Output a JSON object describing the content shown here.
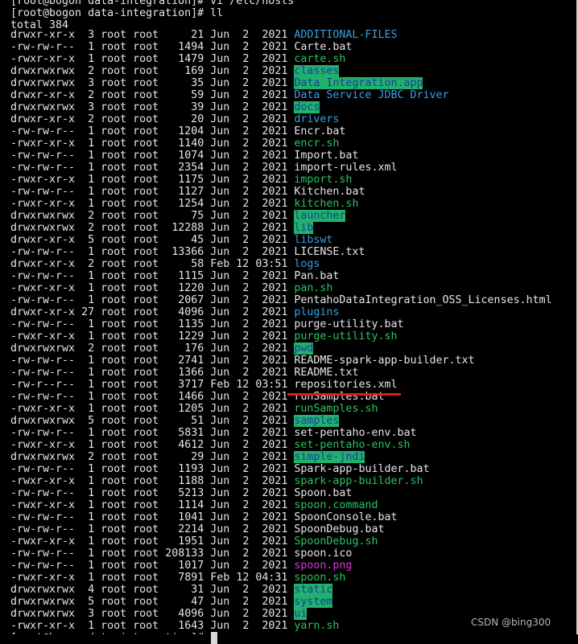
{
  "terminal": {
    "lines_before": [
      "[root@bogon data-integration]# vi /etc/hosts",
      "[root@bogon data-integration]# ll",
      "total 384"
    ],
    "styles": {
      "file": {
        "color": "#e6e6e6"
      },
      "dir": {
        "color": "#3a9fe4"
      },
      "exec": {
        "color": "#2cc35e"
      },
      "writable-dir": {
        "color": "#1a3c9e",
        "background": "#20b26b"
      },
      "image": {
        "color": "#d43bd6"
      }
    },
    "entries": [
      {
        "perms": "drwxr-xr-x",
        "links": "3",
        "owner": "root",
        "group": "root",
        "size": "21",
        "month": "Jun",
        "day": "2",
        "time": "2021",
        "name": "ADDITIONAL-FILES",
        "style": "dir"
      },
      {
        "perms": "-rw-rw-r--",
        "links": "1",
        "owner": "root",
        "group": "root",
        "size": "1494",
        "month": "Jun",
        "day": "2",
        "time": "2021",
        "name": "Carte.bat",
        "style": "file"
      },
      {
        "perms": "-rwxr-xr-x",
        "links": "1",
        "owner": "root",
        "group": "root",
        "size": "1479",
        "month": "Jun",
        "day": "2",
        "time": "2021",
        "name": "carte.sh",
        "style": "exec"
      },
      {
        "perms": "drwxrwxrwx",
        "links": "2",
        "owner": "root",
        "group": "root",
        "size": "169",
        "month": "Jun",
        "day": "2",
        "time": "2021",
        "name": "classes",
        "style": "writable-dir"
      },
      {
        "perms": "drwxrwxrwx",
        "links": "3",
        "owner": "root",
        "group": "root",
        "size": "35",
        "month": "Jun",
        "day": "2",
        "time": "2021",
        "name": "Data Integration.app",
        "style": "writable-dir"
      },
      {
        "perms": "drwxr-xr-x",
        "links": "2",
        "owner": "root",
        "group": "root",
        "size": "59",
        "month": "Jun",
        "day": "2",
        "time": "2021",
        "name": "Data Service JDBC Driver",
        "style": "dir"
      },
      {
        "perms": "drwxrwxrwx",
        "links": "3",
        "owner": "root",
        "group": "root",
        "size": "39",
        "month": "Jun",
        "day": "2",
        "time": "2021",
        "name": "docs",
        "style": "writable-dir"
      },
      {
        "perms": "drwxr-xr-x",
        "links": "2",
        "owner": "root",
        "group": "root",
        "size": "20",
        "month": "Jun",
        "day": "2",
        "time": "2021",
        "name": "drivers",
        "style": "dir"
      },
      {
        "perms": "-rw-rw-r--",
        "links": "1",
        "owner": "root",
        "group": "root",
        "size": "1204",
        "month": "Jun",
        "day": "2",
        "time": "2021",
        "name": "Encr.bat",
        "style": "file"
      },
      {
        "perms": "-rwxr-xr-x",
        "links": "1",
        "owner": "root",
        "group": "root",
        "size": "1140",
        "month": "Jun",
        "day": "2",
        "time": "2021",
        "name": "encr.sh",
        "style": "exec"
      },
      {
        "perms": "-rw-rw-r--",
        "links": "1",
        "owner": "root",
        "group": "root",
        "size": "1074",
        "month": "Jun",
        "day": "2",
        "time": "2021",
        "name": "Import.bat",
        "style": "file"
      },
      {
        "perms": "-rw-rw-r--",
        "links": "1",
        "owner": "root",
        "group": "root",
        "size": "2354",
        "month": "Jun",
        "day": "2",
        "time": "2021",
        "name": "import-rules.xml",
        "style": "file"
      },
      {
        "perms": "-rwxr-xr-x",
        "links": "1",
        "owner": "root",
        "group": "root",
        "size": "1175",
        "month": "Jun",
        "day": "2",
        "time": "2021",
        "name": "import.sh",
        "style": "exec"
      },
      {
        "perms": "-rw-rw-r--",
        "links": "1",
        "owner": "root",
        "group": "root",
        "size": "1127",
        "month": "Jun",
        "day": "2",
        "time": "2021",
        "name": "Kitchen.bat",
        "style": "file"
      },
      {
        "perms": "-rwxr-xr-x",
        "links": "1",
        "owner": "root",
        "group": "root",
        "size": "1254",
        "month": "Jun",
        "day": "2",
        "time": "2021",
        "name": "kitchen.sh",
        "style": "exec"
      },
      {
        "perms": "drwxrwxrwx",
        "links": "2",
        "owner": "root",
        "group": "root",
        "size": "75",
        "month": "Jun",
        "day": "2",
        "time": "2021",
        "name": "launcher",
        "style": "writable-dir"
      },
      {
        "perms": "drwxrwxrwx",
        "links": "2",
        "owner": "root",
        "group": "root",
        "size": "12288",
        "month": "Jun",
        "day": "2",
        "time": "2021",
        "name": "lib",
        "style": "writable-dir"
      },
      {
        "perms": "drwxr-xr-x",
        "links": "5",
        "owner": "root",
        "group": "root",
        "size": "45",
        "month": "Jun",
        "day": "2",
        "time": "2021",
        "name": "libswt",
        "style": "dir"
      },
      {
        "perms": "-rw-rw-r--",
        "links": "1",
        "owner": "root",
        "group": "root",
        "size": "13366",
        "month": "Jun",
        "day": "2",
        "time": "2021",
        "name": "LICENSE.txt",
        "style": "file"
      },
      {
        "perms": "drwxr-xr-x",
        "links": "2",
        "owner": "root",
        "group": "root",
        "size": "58",
        "month": "Feb",
        "day": "12",
        "time": "03:51",
        "name": "logs",
        "style": "dir"
      },
      {
        "perms": "-rw-rw-r--",
        "links": "1",
        "owner": "root",
        "group": "root",
        "size": "1115",
        "month": "Jun",
        "day": "2",
        "time": "2021",
        "name": "Pan.bat",
        "style": "file"
      },
      {
        "perms": "-rwxr-xr-x",
        "links": "1",
        "owner": "root",
        "group": "root",
        "size": "1220",
        "month": "Jun",
        "day": "2",
        "time": "2021",
        "name": "pan.sh",
        "style": "exec"
      },
      {
        "perms": "-rw-rw-r--",
        "links": "1",
        "owner": "root",
        "group": "root",
        "size": "2067",
        "month": "Jun",
        "day": "2",
        "time": "2021",
        "name": "PentahoDataIntegration_OSS_Licenses.html",
        "style": "file"
      },
      {
        "perms": "drwxr-xr-x",
        "links": "27",
        "owner": "root",
        "group": "root",
        "size": "4096",
        "month": "Jun",
        "day": "2",
        "time": "2021",
        "name": "plugins",
        "style": "dir"
      },
      {
        "perms": "-rw-rw-r--",
        "links": "1",
        "owner": "root",
        "group": "root",
        "size": "1135",
        "month": "Jun",
        "day": "2",
        "time": "2021",
        "name": "purge-utility.bat",
        "style": "file"
      },
      {
        "perms": "-rwxr-xr-x",
        "links": "1",
        "owner": "root",
        "group": "root",
        "size": "1229",
        "month": "Jun",
        "day": "2",
        "time": "2021",
        "name": "purge-utility.sh",
        "style": "exec"
      },
      {
        "perms": "drwxrwxrwx",
        "links": "2",
        "owner": "root",
        "group": "root",
        "size": "176",
        "month": "Jun",
        "day": "2",
        "time": "2021",
        "name": "pwd",
        "style": "writable-dir"
      },
      {
        "perms": "-rw-rw-r--",
        "links": "1",
        "owner": "root",
        "group": "root",
        "size": "2741",
        "month": "Jun",
        "day": "2",
        "time": "2021",
        "name": "README-spark-app-builder.txt",
        "style": "file"
      },
      {
        "perms": "-rw-rw-r--",
        "links": "1",
        "owner": "root",
        "group": "root",
        "size": "1366",
        "month": "Jun",
        "day": "2",
        "time": "2021",
        "name": "README.txt",
        "style": "file"
      },
      {
        "perms": "-rw-r--r--",
        "links": "1",
        "owner": "root",
        "group": "root",
        "size": "3717",
        "month": "Feb",
        "day": "12",
        "time": "03:51",
        "name": "repositories.xml",
        "style": "file"
      },
      {
        "perms": "-rw-rw-r--",
        "links": "1",
        "owner": "root",
        "group": "root",
        "size": "1466",
        "month": "Jun",
        "day": "2",
        "time": "2021",
        "name": "runSamples.bat",
        "style": "file"
      },
      {
        "perms": "-rwxr-xr-x",
        "links": "1",
        "owner": "root",
        "group": "root",
        "size": "1205",
        "month": "Jun",
        "day": "2",
        "time": "2021",
        "name": "runSamples.sh",
        "style": "exec"
      },
      {
        "perms": "drwxrwxrwx",
        "links": "5",
        "owner": "root",
        "group": "root",
        "size": "51",
        "month": "Jun",
        "day": "2",
        "time": "2021",
        "name": "samples",
        "style": "writable-dir"
      },
      {
        "perms": "-rw-rw-r--",
        "links": "1",
        "owner": "root",
        "group": "root",
        "size": "5831",
        "month": "Jun",
        "day": "2",
        "time": "2021",
        "name": "set-pentaho-env.bat",
        "style": "file"
      },
      {
        "perms": "-rwxr-xr-x",
        "links": "1",
        "owner": "root",
        "group": "root",
        "size": "4612",
        "month": "Jun",
        "day": "2",
        "time": "2021",
        "name": "set-pentaho-env.sh",
        "style": "exec"
      },
      {
        "perms": "drwxrwxrwx",
        "links": "2",
        "owner": "root",
        "group": "root",
        "size": "29",
        "month": "Jun",
        "day": "2",
        "time": "2021",
        "name": "simple-jndi",
        "style": "writable-dir"
      },
      {
        "perms": "-rw-rw-r--",
        "links": "1",
        "owner": "root",
        "group": "root",
        "size": "1193",
        "month": "Jun",
        "day": "2",
        "time": "2021",
        "name": "Spark-app-builder.bat",
        "style": "file"
      },
      {
        "perms": "-rwxr-xr-x",
        "links": "1",
        "owner": "root",
        "group": "root",
        "size": "1188",
        "month": "Jun",
        "day": "2",
        "time": "2021",
        "name": "spark-app-builder.sh",
        "style": "exec"
      },
      {
        "perms": "-rw-rw-r--",
        "links": "1",
        "owner": "root",
        "group": "root",
        "size": "5213",
        "month": "Jun",
        "day": "2",
        "time": "2021",
        "name": "Spoon.bat",
        "style": "file"
      },
      {
        "perms": "-rwxr-xr-x",
        "links": "1",
        "owner": "root",
        "group": "root",
        "size": "1114",
        "month": "Jun",
        "day": "2",
        "time": "2021",
        "name": "spoon.command",
        "style": "exec"
      },
      {
        "perms": "-rw-rw-r--",
        "links": "1",
        "owner": "root",
        "group": "root",
        "size": "1041",
        "month": "Jun",
        "day": "2",
        "time": "2021",
        "name": "SpoonConsole.bat",
        "style": "file"
      },
      {
        "perms": "-rw-rw-r--",
        "links": "1",
        "owner": "root",
        "group": "root",
        "size": "2214",
        "month": "Jun",
        "day": "2",
        "time": "2021",
        "name": "SpoonDebug.bat",
        "style": "file"
      },
      {
        "perms": "-rwxr-xr-x",
        "links": "1",
        "owner": "root",
        "group": "root",
        "size": "1951",
        "month": "Jun",
        "day": "2",
        "time": "2021",
        "name": "SpoonDebug.sh",
        "style": "exec"
      },
      {
        "perms": "-rw-rw-r--",
        "links": "1",
        "owner": "root",
        "group": "root",
        "size": "208133",
        "month": "Jun",
        "day": "2",
        "time": "2021",
        "name": "spoon.ico",
        "style": "file"
      },
      {
        "perms": "-rw-rw-r--",
        "links": "1",
        "owner": "root",
        "group": "root",
        "size": "1017",
        "month": "Jun",
        "day": "2",
        "time": "2021",
        "name": "spoon.png",
        "style": "image"
      },
      {
        "perms": "-rwxr-xr-x",
        "links": "1",
        "owner": "root",
        "group": "root",
        "size": "7891",
        "month": "Feb",
        "day": "12",
        "time": "04:31",
        "name": "spoon.sh",
        "style": "exec"
      },
      {
        "perms": "drwxrwxrwx",
        "links": "4",
        "owner": "root",
        "group": "root",
        "size": "31",
        "month": "Jun",
        "day": "2",
        "time": "2021",
        "name": "static",
        "style": "writable-dir"
      },
      {
        "perms": "drwxrwxrwx",
        "links": "5",
        "owner": "root",
        "group": "root",
        "size": "47",
        "month": "Jun",
        "day": "2",
        "time": "2021",
        "name": "system",
        "style": "writable-dir"
      },
      {
        "perms": "drwxrwxrwx",
        "links": "3",
        "owner": "root",
        "group": "root",
        "size": "4096",
        "month": "Jun",
        "day": "2",
        "time": "2021",
        "name": "ui",
        "style": "writable-dir"
      },
      {
        "perms": "-rwxr-xr-x",
        "links": "1",
        "owner": "root",
        "group": "root",
        "size": "1643",
        "month": "Jun",
        "day": "2",
        "time": "2021",
        "name": "yarn.sh",
        "style": "exec"
      }
    ],
    "prompt_after": "[root@bogon data-integration]#",
    "watermark": "CSDN @bing300"
  }
}
